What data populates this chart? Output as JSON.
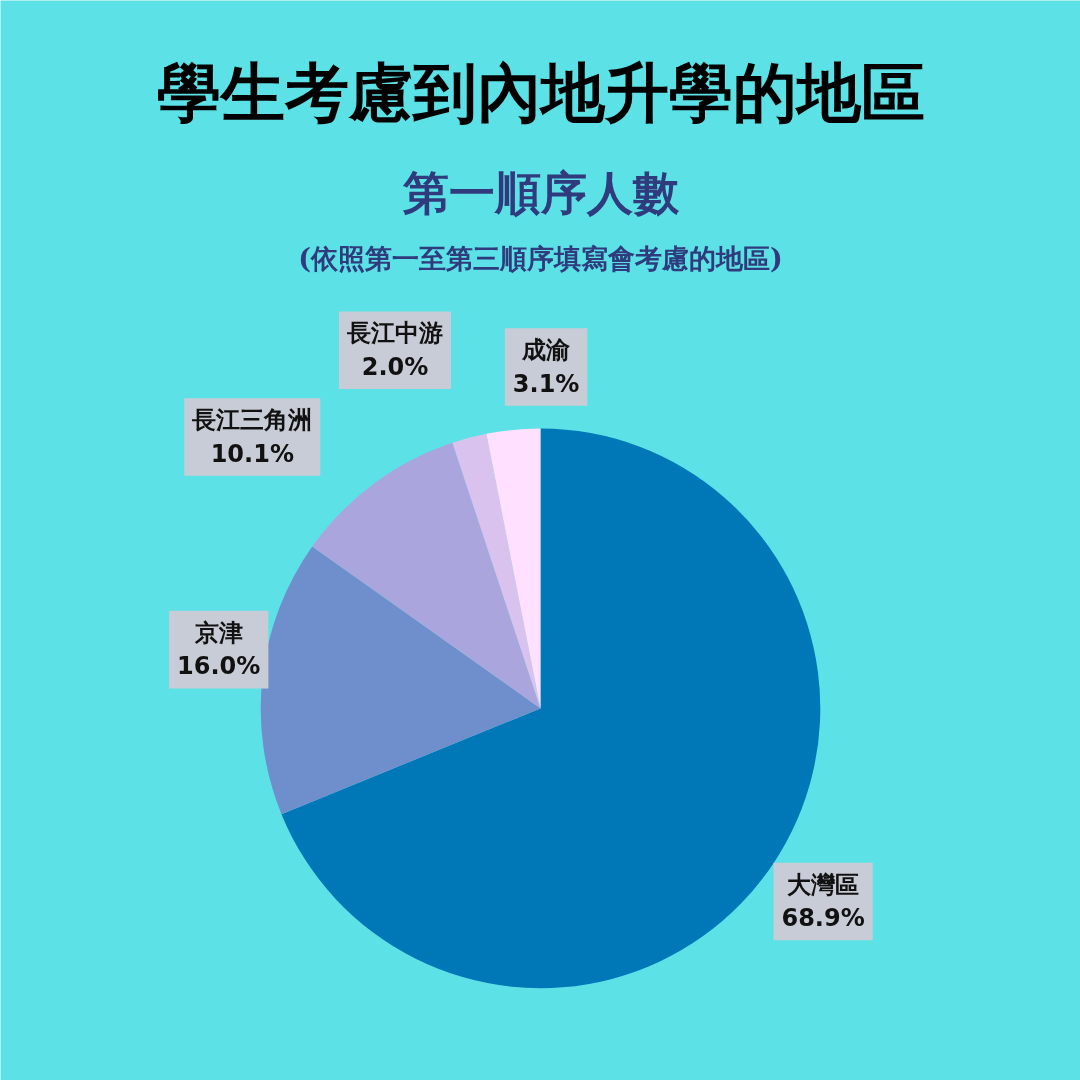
{
  "chart_data": {
    "type": "pie",
    "title": "學生考慮到內地升學的地區",
    "subtitle": "第一順序人數",
    "annotations": [
      "(依照第一至第三順序填寫會考慮的地區)"
    ],
    "categories": [
      "大灣區",
      "京津",
      "長江三角洲",
      "長江中游",
      "成渝"
    ],
    "values": [
      68.9,
      16.0,
      10.1,
      2.0,
      3.1
    ],
    "value_labels": [
      "68.9%",
      "16.0%",
      "10.1%",
      "2.0%",
      "3.1%"
    ],
    "colors": [
      "#0077b6",
      "#6f8fcc",
      "#aaa6dd",
      "#d9c2ee",
      "#ffe0fe"
    ]
  }
}
